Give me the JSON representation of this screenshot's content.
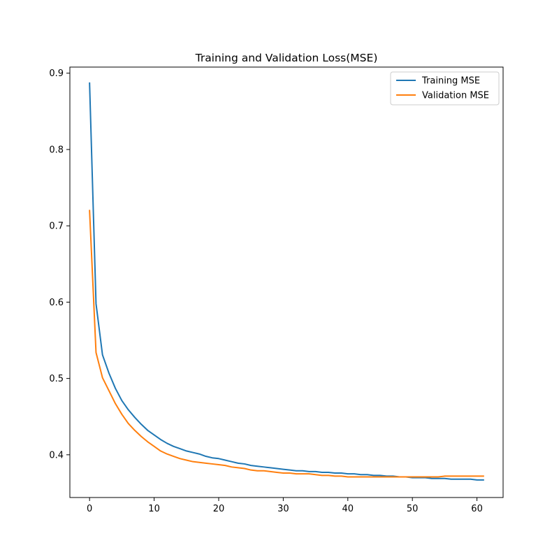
{
  "chart_data": {
    "type": "line",
    "title": "Training and Validation Loss(MSE)",
    "xlabel": "",
    "ylabel": "",
    "xlim": [
      -3.05,
      64.05
    ],
    "ylim": [
      0.344,
      0.908
    ],
    "xticks": [
      0,
      10,
      20,
      30,
      40,
      50,
      60
    ],
    "yticks": [
      0.4,
      0.5,
      0.6,
      0.7,
      0.8,
      0.9
    ],
    "grid": false,
    "legend_position": "top-right",
    "series": [
      {
        "name": "Training MSE",
        "color": "#1f77b4",
        "x": [
          0,
          1,
          2,
          3,
          4,
          5,
          6,
          7,
          8,
          9,
          10,
          11,
          12,
          13,
          14,
          15,
          16,
          17,
          18,
          19,
          20,
          21,
          22,
          23,
          24,
          25,
          26,
          27,
          28,
          29,
          30,
          31,
          32,
          33,
          34,
          35,
          36,
          37,
          38,
          39,
          40,
          41,
          42,
          43,
          44,
          45,
          46,
          47,
          48,
          49,
          50,
          51,
          52,
          53,
          54,
          55,
          56,
          57,
          58,
          59,
          60,
          61
        ],
        "values": [
          0.887,
          0.598,
          0.531,
          0.507,
          0.487,
          0.471,
          0.459,
          0.449,
          0.44,
          0.432,
          0.426,
          0.42,
          0.415,
          0.411,
          0.408,
          0.405,
          0.403,
          0.401,
          0.398,
          0.396,
          0.395,
          0.393,
          0.391,
          0.389,
          0.388,
          0.386,
          0.385,
          0.384,
          0.383,
          0.382,
          0.381,
          0.38,
          0.379,
          0.379,
          0.378,
          0.378,
          0.377,
          0.377,
          0.376,
          0.376,
          0.375,
          0.375,
          0.374,
          0.374,
          0.373,
          0.373,
          0.372,
          0.372,
          0.371,
          0.371,
          0.37,
          0.37,
          0.37,
          0.369,
          0.369,
          0.369,
          0.368,
          0.368,
          0.368,
          0.368,
          0.367,
          0.367
        ]
      },
      {
        "name": "Validation MSE",
        "color": "#ff7f0e",
        "x": [
          0,
          1,
          2,
          3,
          4,
          5,
          6,
          7,
          8,
          9,
          10,
          11,
          12,
          13,
          14,
          15,
          16,
          17,
          18,
          19,
          20,
          21,
          22,
          23,
          24,
          25,
          26,
          27,
          28,
          29,
          30,
          31,
          32,
          33,
          34,
          35,
          36,
          37,
          38,
          39,
          40,
          41,
          42,
          43,
          44,
          45,
          46,
          47,
          48,
          49,
          50,
          51,
          52,
          53,
          54,
          55,
          56,
          57,
          58,
          59,
          60,
          61
        ],
        "values": [
          0.72,
          0.534,
          0.501,
          0.484,
          0.467,
          0.453,
          0.441,
          0.432,
          0.424,
          0.417,
          0.411,
          0.405,
          0.401,
          0.398,
          0.395,
          0.393,
          0.391,
          0.39,
          0.389,
          0.388,
          0.387,
          0.386,
          0.384,
          0.383,
          0.382,
          0.38,
          0.379,
          0.379,
          0.378,
          0.377,
          0.376,
          0.376,
          0.375,
          0.375,
          0.375,
          0.374,
          0.373,
          0.373,
          0.372,
          0.372,
          0.371,
          0.371,
          0.371,
          0.371,
          0.371,
          0.371,
          0.371,
          0.371,
          0.371,
          0.371,
          0.371,
          0.371,
          0.371,
          0.371,
          0.371,
          0.372,
          0.372,
          0.372,
          0.372,
          0.372,
          0.372,
          0.372
        ]
      }
    ]
  }
}
